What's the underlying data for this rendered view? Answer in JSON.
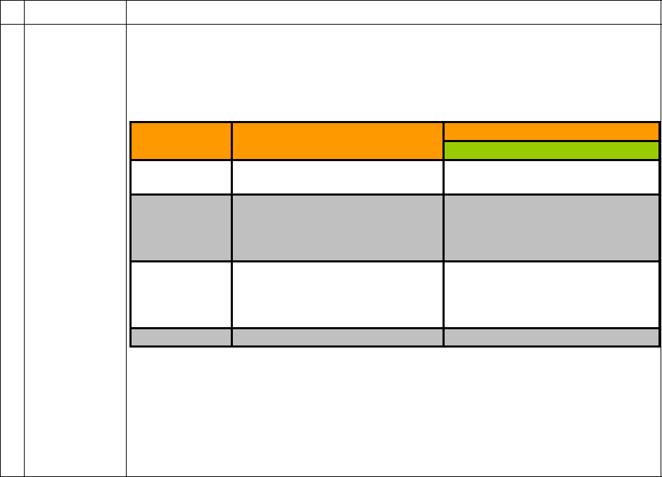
{
  "colors": {
    "header": "#ff9900",
    "subheader": "#99cc00",
    "shaded_row": "#c0c0c0",
    "plain_row": "#ffffff",
    "border": "#000000"
  },
  "table": {
    "header": [
      "",
      "",
      ""
    ],
    "subheader": [
      ""
    ],
    "rows": [
      [
        "",
        "",
        ""
      ],
      [
        "",
        "",
        ""
      ],
      [
        "",
        "",
        ""
      ],
      [
        "",
        "",
        ""
      ]
    ]
  }
}
